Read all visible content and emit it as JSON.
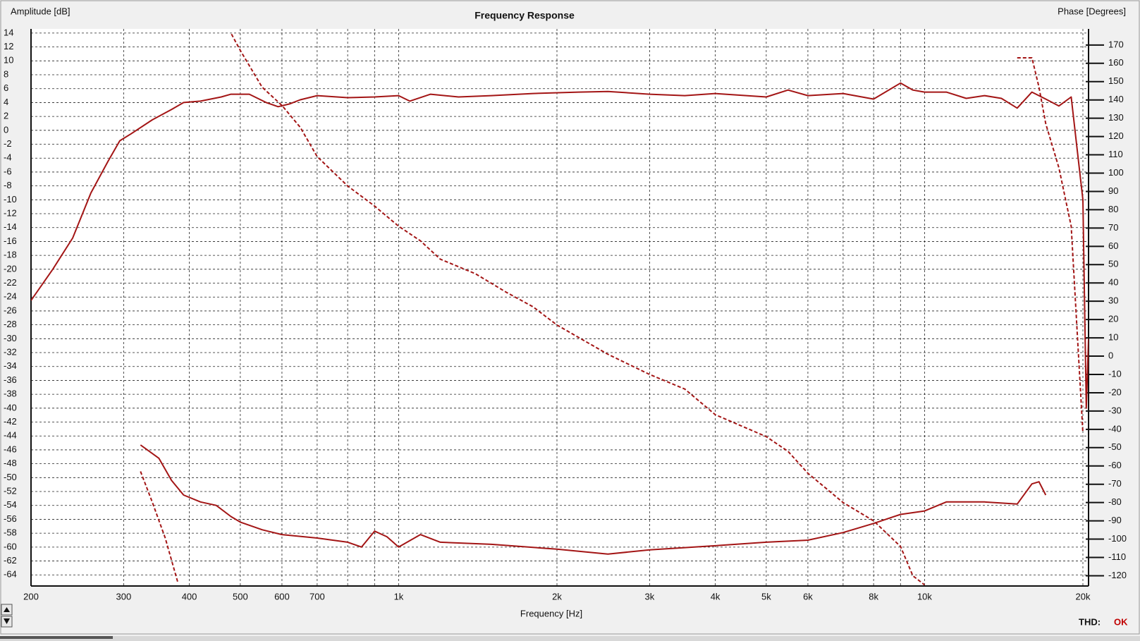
{
  "chart_data": {
    "type": "line",
    "title": "Frequency Response",
    "ylabel": "Amplitude [dB]",
    "y2label": "Phase [Degrees]",
    "xlabel": "Frequency [Hz]",
    "thd_label": "THD:",
    "thd_status": "OK",
    "xscale": "log",
    "grid": true,
    "xlim": [
      200,
      20500
    ],
    "ylim": [
      -65.6,
      14.6
    ],
    "y2lim": [
      -125.6,
      178.8
    ],
    "xticks": [
      200,
      300,
      400,
      500,
      600,
      700,
      {
        "value": 1000,
        "label": "1k"
      },
      {
        "value": 2000,
        "label": "2k"
      },
      {
        "value": 3000,
        "label": "3k"
      },
      {
        "value": 4000,
        "label": "4k"
      },
      {
        "value": 5000,
        "label": "5k"
      },
      {
        "value": 6000,
        "label": "6k"
      },
      {
        "value": 8000,
        "label": "8k"
      },
      {
        "value": 10000,
        "label": "10k"
      },
      {
        "value": 20000,
        "label": "20k"
      }
    ],
    "x_minor_ticks": [
      800,
      900,
      7000,
      9000
    ],
    "yticks": [
      14,
      12,
      10,
      8,
      6,
      4,
      2,
      0,
      -2,
      -4,
      -6,
      -8,
      -10,
      -12,
      -14,
      -16,
      -18,
      -20,
      -22,
      -24,
      -26,
      -28,
      -30,
      -32,
      -34,
      -36,
      -38,
      -40,
      -42,
      -44,
      -46,
      -48,
      -50,
      -52,
      -54,
      -56,
      -58,
      -60,
      -62,
      -64
    ],
    "y2ticks": [
      170,
      160,
      150,
      140,
      130,
      120,
      110,
      100,
      90,
      80,
      70,
      60,
      50,
      40,
      30,
      20,
      10,
      0,
      -10,
      -20,
      -30,
      -40,
      -50,
      -60,
      -70,
      -80,
      -90,
      -100,
      -110,
      -120
    ],
    "series": [
      {
        "color": "#a31515",
        "style": "solid",
        "axis": "y",
        "x": [
          200,
          220,
          240,
          260,
          280,
          295,
          310,
          340,
          370,
          390,
          420,
          460,
          480,
          520,
          560,
          590,
          620,
          650,
          700,
          800,
          900,
          1000,
          1050,
          1150,
          1300,
          1500,
          1800,
          2200,
          2500,
          3000,
          3500,
          4000,
          5000,
          5500,
          6000,
          7000,
          8000,
          9000,
          9500,
          10000,
          11000,
          12000,
          13000,
          14000,
          15000,
          16000,
          17000,
          18000,
          19000,
          20000,
          20300,
          20500
        ],
        "values": [
          -24.5,
          -20,
          -15.5,
          -9,
          -4.5,
          -1.5,
          -0.5,
          1.5,
          3,
          4,
          4.2,
          4.8,
          5.2,
          5.2,
          4,
          3.4,
          3.8,
          4.4,
          5,
          4.7,
          4.8,
          5,
          4.2,
          5.2,
          4.8,
          5,
          5.3,
          5.5,
          5.6,
          5.2,
          5,
          5.3,
          4.8,
          5.8,
          5,
          5.3,
          4.5,
          6.8,
          5.8,
          5.5,
          5.5,
          4.6,
          5,
          4.6,
          3.2,
          5.5,
          4.5,
          3.5,
          4.8,
          -10,
          -40,
          -30
        ]
      },
      {
        "color": "#a31515",
        "style": "dashed",
        "axis": "y2",
        "x": [
          481,
          500,
          550,
          600,
          650,
          700,
          800,
          900,
          1000,
          1100,
          1200,
          1400,
          1600,
          1800,
          2000,
          2500,
          3000,
          3500,
          4000,
          5000,
          5500,
          6000,
          7000,
          8000,
          9000,
          9500,
          10000,
          14000,
          15000,
          16000,
          16500,
          17000,
          18000,
          19000,
          20000
        ],
        "values": [
          176,
          167,
          147,
          137,
          125,
          109,
          93,
          82,
          71,
          63,
          53,
          45,
          35,
          27,
          17,
          1,
          -10,
          -18,
          -32,
          -44,
          -52,
          -64,
          -80,
          -90,
          -104,
          -120,
          -125,
          null,
          163,
          163,
          147,
          127,
          103,
          71,
          -42
        ]
      },
      {
        "color": "#a31515",
        "style": "solid",
        "axis": "y",
        "x": [
          323,
          350,
          370,
          390,
          420,
          450,
          480,
          500,
          550,
          600,
          700,
          800,
          850,
          900,
          950,
          1000,
          1100,
          1200,
          1500,
          2000,
          2500,
          3000,
          4000,
          5000,
          6000,
          7000,
          8000,
          9000,
          10000,
          11000,
          13000,
          15000,
          16000,
          16500,
          17000
        ],
        "values": [
          -45.3,
          -47.2,
          -50.4,
          -52.5,
          -53.5,
          -54,
          -55.6,
          -56.4,
          -57.5,
          -58.2,
          -58.7,
          -59.3,
          -60,
          -57.7,
          -58.5,
          -60,
          -58.2,
          -59.3,
          -59.6,
          -60.3,
          -61,
          -60.4,
          -59.8,
          -59.3,
          -59,
          -57.9,
          -56.6,
          -55.3,
          -54.8,
          -53.5,
          -53.5,
          -53.8,
          -50.9,
          -50.6,
          -52.5
        ]
      },
      {
        "color": "#a31515",
        "style": "dashed",
        "axis": "y",
        "x": [
          323,
          340,
          360,
          380
        ],
        "values": [
          -49.1,
          -53.5,
          -58.7,
          -65
        ]
      }
    ]
  }
}
